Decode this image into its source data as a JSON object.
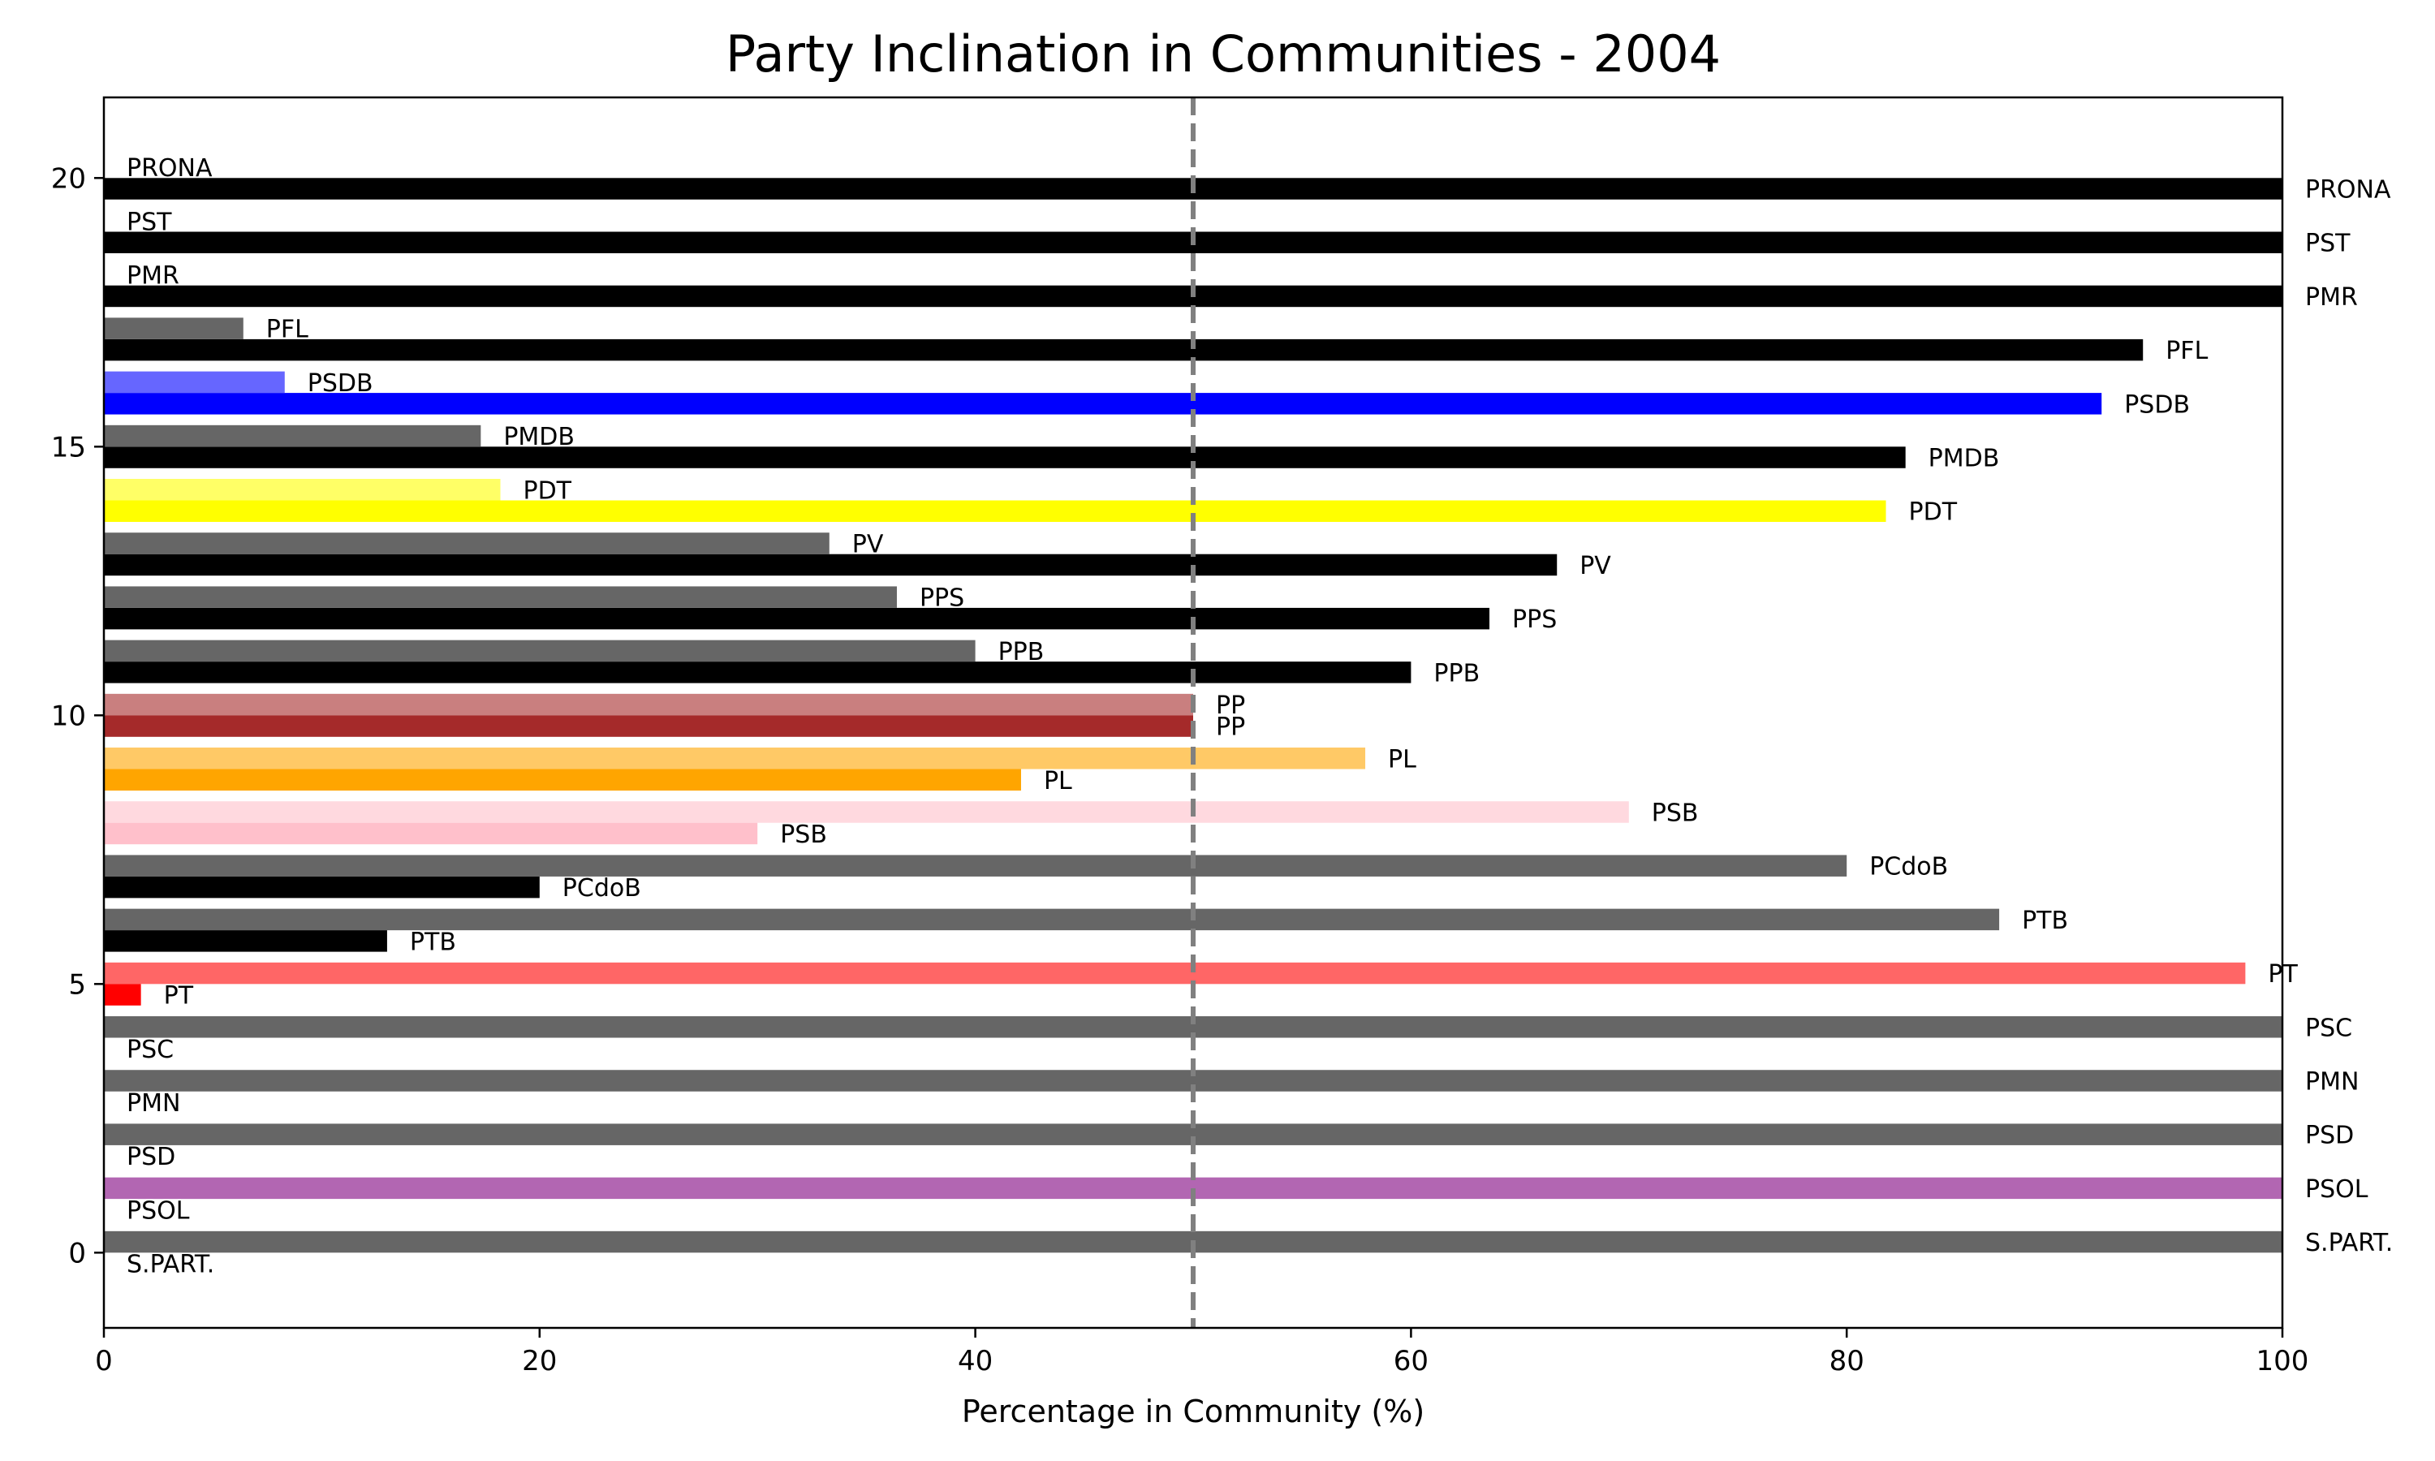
{
  "chart_data": {
    "type": "bar",
    "orientation": "horizontal",
    "title": "Party Inclination in Communities - 2004",
    "xlabel": "Percentage in Community (%)",
    "ylabel": "",
    "xlim": [
      0,
      100
    ],
    "ylim": [
      -1.4,
      21.5
    ],
    "xticks": [
      0,
      20,
      40,
      60,
      80,
      100
    ],
    "yticks": [
      0,
      5,
      10,
      15,
      20
    ],
    "reference_line": {
      "x": 50,
      "style": "dashed",
      "color": "#808080"
    },
    "grid": false,
    "legend": "none",
    "colors": {
      "black": "#000000",
      "gray": "#666666",
      "psdb": "#0000ff",
      "psdb_light": "#6666ff",
      "pdt": "#ffff00",
      "pdt_light": "#ffff66",
      "pp": "#a52a2a",
      "pp_light": "#c97f7f",
      "pl": "#ffa500",
      "pl_light": "#ffc966",
      "psb": "#ffc0cb",
      "psb_light": "#ffd9df",
      "pt": "#ff0000",
      "pt_light": "#ff6666",
      "psol": "#b266b2"
    },
    "bars": [
      {
        "label": "S.PART.",
        "y": 0.2,
        "value": 100,
        "color": "#666666",
        "label_pos": "end"
      },
      {
        "label": "S.PART.",
        "y": -0.2,
        "value": 0,
        "color": "#000000",
        "label_pos": "end"
      },
      {
        "label": "PSOL",
        "y": 1.2,
        "value": 100,
        "color": "#b266b2",
        "label_pos": "end"
      },
      {
        "label": "PSOL",
        "y": 0.8,
        "value": 0,
        "color": "#000000",
        "label_pos": "end"
      },
      {
        "label": "PSD",
        "y": 2.2,
        "value": 100,
        "color": "#666666",
        "label_pos": "end"
      },
      {
        "label": "PSD",
        "y": 1.8,
        "value": 0,
        "color": "#000000",
        "label_pos": "end"
      },
      {
        "label": "PMN",
        "y": 3.2,
        "value": 100,
        "color": "#666666",
        "label_pos": "end"
      },
      {
        "label": "PMN",
        "y": 2.8,
        "value": 0,
        "color": "#000000",
        "label_pos": "end"
      },
      {
        "label": "PSC",
        "y": 4.2,
        "value": 100,
        "color": "#666666",
        "label_pos": "end"
      },
      {
        "label": "PSC",
        "y": 3.8,
        "value": 0,
        "color": "#000000",
        "label_pos": "end"
      },
      {
        "label": "PT",
        "y": 5.2,
        "value": 98.3,
        "color": "#ff6666",
        "label_pos": "end"
      },
      {
        "label": "PT",
        "y": 4.8,
        "value": 1.7,
        "color": "#ff0000",
        "label_pos": "end"
      },
      {
        "label": "PTB",
        "y": 6.2,
        "value": 87,
        "color": "#666666",
        "label_pos": "end"
      },
      {
        "label": "PTB",
        "y": 5.8,
        "value": 13,
        "color": "#000000",
        "label_pos": "end"
      },
      {
        "label": "PCdoB",
        "y": 7.2,
        "value": 80,
        "color": "#666666",
        "label_pos": "end"
      },
      {
        "label": "PCdoB",
        "y": 6.8,
        "value": 20,
        "color": "#000000",
        "label_pos": "end"
      },
      {
        "label": "PSB",
        "y": 8.2,
        "value": 70,
        "color": "#ffd9df",
        "label_pos": "end"
      },
      {
        "label": "PSB",
        "y": 7.8,
        "value": 30,
        "color": "#ffc0cb",
        "label_pos": "end"
      },
      {
        "label": "PL",
        "y": 9.2,
        "value": 57.9,
        "color": "#ffc966",
        "label_pos": "end"
      },
      {
        "label": "PL",
        "y": 8.8,
        "value": 42.1,
        "color": "#ffa500",
        "label_pos": "end"
      },
      {
        "label": "PP",
        "y": 10.2,
        "value": 50,
        "color": "#c97f7f",
        "label_pos": "end"
      },
      {
        "label": "PP",
        "y": 9.8,
        "value": 50,
        "color": "#a52a2a",
        "label_pos": "end"
      },
      {
        "label": "PPB",
        "y": 10.8,
        "value": 60,
        "color": "#000000",
        "label_pos": "end"
      },
      {
        "label": "PPB",
        "y": 11.2,
        "value": 40,
        "color": "#666666",
        "label_pos": "end"
      },
      {
        "label": "PPS",
        "y": 11.8,
        "value": 63.6,
        "color": "#000000",
        "label_pos": "end"
      },
      {
        "label": "PPS",
        "y": 12.2,
        "value": 36.4,
        "color": "#666666",
        "label_pos": "end"
      },
      {
        "label": "PV",
        "y": 12.8,
        "value": 66.7,
        "color": "#000000",
        "label_pos": "end"
      },
      {
        "label": "PV",
        "y": 13.2,
        "value": 33.3,
        "color": "#666666",
        "label_pos": "end"
      },
      {
        "label": "PDT",
        "y": 13.8,
        "value": 81.8,
        "color": "#ffff00",
        "label_pos": "end"
      },
      {
        "label": "PDT",
        "y": 14.2,
        "value": 18.2,
        "color": "#ffff66",
        "label_pos": "end"
      },
      {
        "label": "PMDB",
        "y": 14.8,
        "value": 82.7,
        "color": "#000000",
        "label_pos": "end"
      },
      {
        "label": "PMDB",
        "y": 15.2,
        "value": 17.3,
        "color": "#666666",
        "label_pos": "end"
      },
      {
        "label": "PSDB",
        "y": 15.8,
        "value": 91.7,
        "color": "#0000ff",
        "label_pos": "end"
      },
      {
        "label": "PSDB",
        "y": 16.2,
        "value": 8.3,
        "color": "#6666ff",
        "label_pos": "end"
      },
      {
        "label": "PFL",
        "y": 16.8,
        "value": 93.6,
        "color": "#000000",
        "label_pos": "end"
      },
      {
        "label": "PFL",
        "y": 17.2,
        "value": 6.4,
        "color": "#666666",
        "label_pos": "end"
      },
      {
        "label": "PMR",
        "y": 17.8,
        "value": 100,
        "color": "#000000",
        "label_pos": "end"
      },
      {
        "label": "PMR",
        "y": 18.2,
        "value": 0,
        "color": "#666666",
        "label_pos": "end"
      },
      {
        "label": "PST",
        "y": 18.8,
        "value": 100,
        "color": "#000000",
        "label_pos": "end"
      },
      {
        "label": "PST",
        "y": 19.2,
        "value": 0,
        "color": "#666666",
        "label_pos": "end"
      },
      {
        "label": "PRONA",
        "y": 19.8,
        "value": 100,
        "color": "#000000",
        "label_pos": "end"
      },
      {
        "label": "PRONA",
        "y": 20.2,
        "value": 0,
        "color": "#666666",
        "label_pos": "end"
      }
    ]
  }
}
